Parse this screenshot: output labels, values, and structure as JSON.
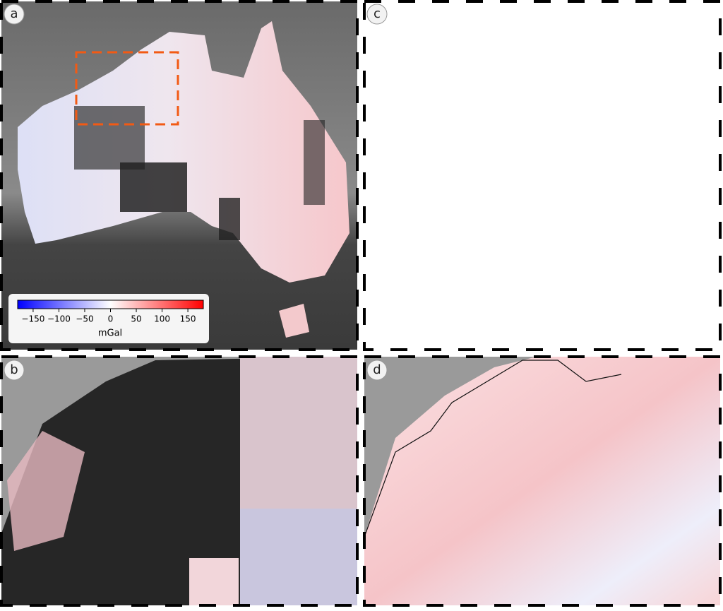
{
  "panels": [
    {
      "label": "a"
    },
    {
      "label": "b"
    },
    {
      "label": "c"
    },
    {
      "label": "d"
    }
  ],
  "colorbar": {
    "label": "mGal",
    "lim": [
      -180,
      180
    ],
    "colors": [
      "#0000ff",
      "#ffffff",
      "#ff0000"
    ],
    "ticks": [
      {
        "value": -150,
        "label": "−150"
      },
      {
        "value": -100,
        "label": "−100"
      },
      {
        "value": -50,
        "label": "−50"
      },
      0,
      50,
      100,
      150
    ]
  }
}
